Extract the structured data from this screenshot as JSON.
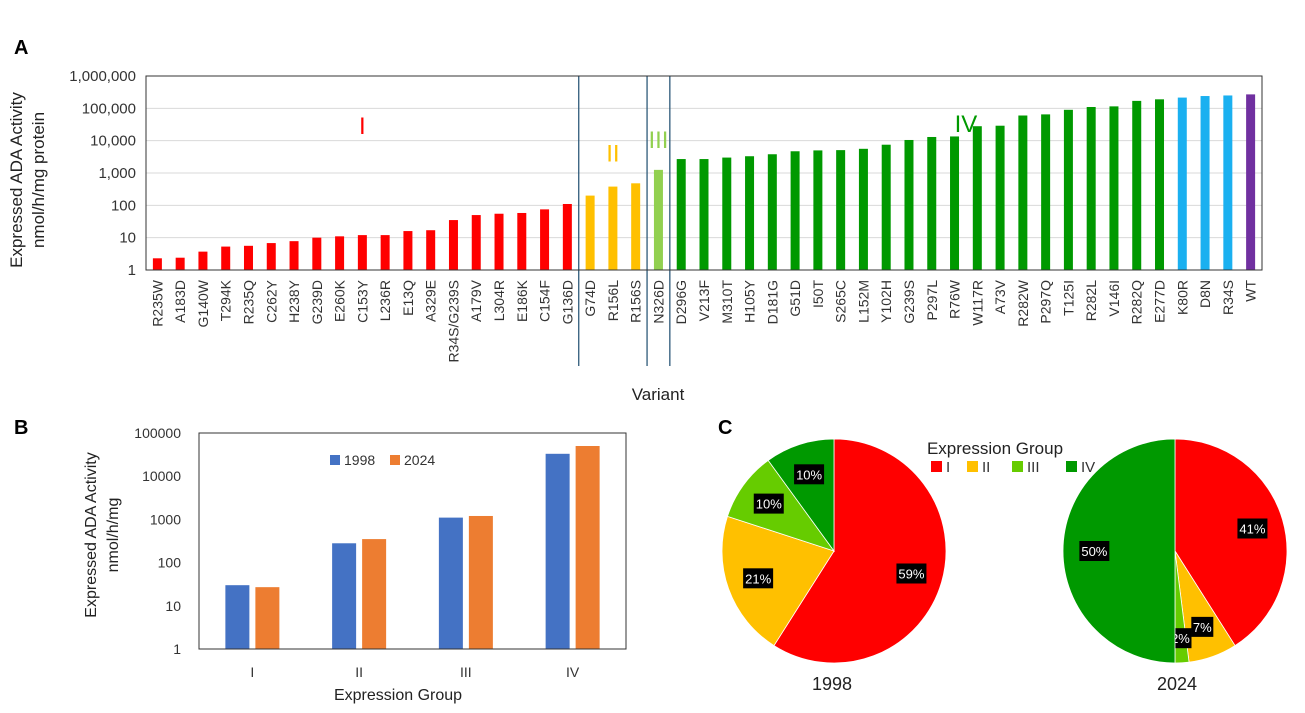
{
  "figure": {
    "panel_labels": [
      "A",
      "B",
      "C"
    ]
  },
  "colors": {
    "group_I": "#ff0000",
    "group_II": "#ffc000",
    "group_III": "#92d050",
    "group_IV": "#009900",
    "group_III_pie": "#66cc00",
    "light_blue": "#1ab0f0",
    "purple": "#7030a0",
    "series_1998": "#4472c4",
    "series_2024": "#ed7d31"
  },
  "chart_data": [
    {
      "type": "bar",
      "id": "A",
      "xlabel": "Variant",
      "ylabel_lines": [
        "Expressed ADA Activity",
        "nmol/h/mg protein"
      ],
      "yscale": "log",
      "ylim": [
        1,
        1000000
      ],
      "yticks": [
        "1",
        "10",
        "100",
        "1,000",
        "10,000",
        "100,000",
        "1,000,000"
      ],
      "grid": true,
      "group_labels": [
        {
          "text": "I",
          "group": "I"
        },
        {
          "text": "II",
          "group": "II"
        },
        {
          "text": "III",
          "group": "III"
        },
        {
          "text": "IV",
          "group": "IV"
        }
      ],
      "categories": [
        "R235W",
        "A183D",
        "G140W",
        "T294K",
        "R235Q",
        "C262Y",
        "H238Y",
        "G239D",
        "E260K",
        "C153Y",
        "L236R",
        "E13Q",
        "A329E",
        "R34S/G239S",
        "A179V",
        "L304R",
        "E186K",
        "C154F",
        "G136D",
        "G74D",
        "R156L",
        "R156S",
        "N326D",
        "D296G",
        "V213F",
        "M310T",
        "H105Y",
        "D181G",
        "G51D",
        "I50T",
        "S265C",
        "L152M",
        "Y102H",
        "G239S",
        "P297L",
        "R76W",
        "W117R",
        "A73V",
        "R282W",
        "P297Q",
        "T125I",
        "R282L",
        "V146I",
        "R282Q",
        "E277D",
        "K80R",
        "D8N",
        "R34S",
        "WT"
      ],
      "values": [
        2.3,
        2.4,
        3.7,
        5.3,
        5.6,
        6.8,
        7.8,
        10,
        11,
        12,
        12,
        16,
        17,
        35,
        50,
        55,
        58,
        75,
        110,
        200,
        380,
        480,
        1250,
        2700,
        2700,
        3000,
        3300,
        3800,
        4700,
        5000,
        5100,
        5600,
        7500,
        10500,
        13000,
        13500,
        28000,
        29000,
        60000,
        65000,
        90000,
        110000,
        115000,
        170000,
        190000,
        215000,
        240000,
        250000,
        270000
      ],
      "groups": [
        "I",
        "I",
        "I",
        "I",
        "I",
        "I",
        "I",
        "I",
        "I",
        "I",
        "I",
        "I",
        "I",
        "I",
        "I",
        "I",
        "I",
        "I",
        "I",
        "II",
        "II",
        "II",
        "III",
        "IV",
        "IV",
        "IV",
        "IV",
        "IV",
        "IV",
        "IV",
        "IV",
        "IV",
        "IV",
        "IV",
        "IV",
        "IV",
        "IV",
        "IV",
        "IV",
        "IV",
        "IV",
        "IV",
        "IV",
        "IV",
        "IV",
        "IV",
        "IV",
        "IV",
        "IV"
      ],
      "bar_colors": [
        "group_I",
        "group_I",
        "group_I",
        "group_I",
        "group_I",
        "group_I",
        "group_I",
        "group_I",
        "group_I",
        "group_I",
        "group_I",
        "group_I",
        "group_I",
        "group_I",
        "group_I",
        "group_I",
        "group_I",
        "group_I",
        "group_I",
        "group_II",
        "group_II",
        "group_II",
        "group_III",
        "group_IV",
        "group_IV",
        "group_IV",
        "group_IV",
        "group_IV",
        "group_IV",
        "group_IV",
        "group_IV",
        "group_IV",
        "group_IV",
        "group_IV",
        "group_IV",
        "group_IV",
        "group_IV",
        "group_IV",
        "group_IV",
        "group_IV",
        "group_IV",
        "group_IV",
        "group_IV",
        "group_IV",
        "group_IV",
        "light_blue",
        "light_blue",
        "light_blue",
        "purple"
      ]
    },
    {
      "type": "bar",
      "id": "B",
      "xlabel": "Expression Group",
      "ylabel_lines": [
        "Expressed ADA Activity",
        "nmol/h/mg"
      ],
      "yscale": "log",
      "ylim": [
        1,
        100000
      ],
      "yticks": [
        "1",
        "10",
        "100",
        "1000",
        "10000",
        "100000"
      ],
      "grid": false,
      "legend_position": "top-center",
      "categories": [
        "I",
        "II",
        "III",
        "IV"
      ],
      "series": [
        {
          "name": "1998",
          "color": "series_1998",
          "values": [
            30,
            280,
            1100,
            33000
          ]
        },
        {
          "name": "2024",
          "color": "series_2024",
          "values": [
            27,
            350,
            1200,
            50000
          ]
        }
      ]
    },
    {
      "type": "pie",
      "id": "C",
      "legend_title": "Expression Group",
      "legend_position": "top-center",
      "legend_labels": [
        "I",
        "II",
        "III",
        "IV"
      ],
      "legend_colors": [
        "group_I",
        "group_II",
        "group_III_pie",
        "group_IV"
      ],
      "pies": [
        {
          "label": "1998",
          "slices": [
            {
              "group": "I",
              "value": 59,
              "text": "59%"
            },
            {
              "group": "II",
              "value": 21,
              "text": "21%"
            },
            {
              "group": "III",
              "value": 10,
              "text": "10%"
            },
            {
              "group": "IV",
              "value": 10,
              "text": "10%"
            }
          ]
        },
        {
          "label": "2024",
          "slices": [
            {
              "group": "I",
              "value": 41,
              "text": "41%"
            },
            {
              "group": "II",
              "value": 7,
              "text": "7%"
            },
            {
              "group": "III",
              "value": 2,
              "text": "2%"
            },
            {
              "group": "IV",
              "value": 50,
              "text": "50%"
            }
          ]
        }
      ]
    }
  ]
}
